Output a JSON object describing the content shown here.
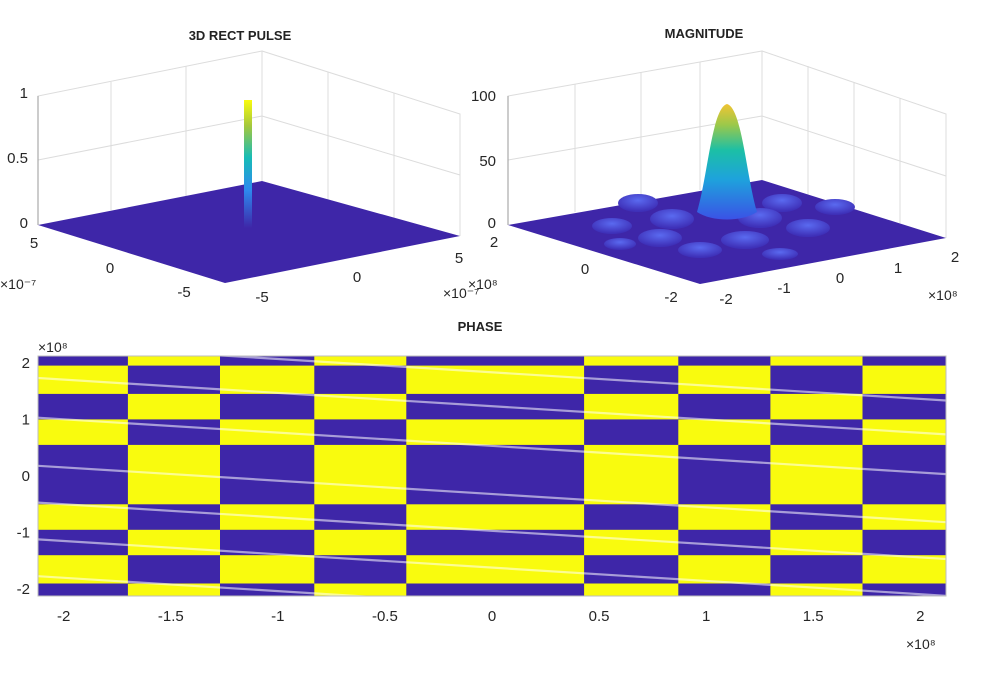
{
  "chart_data": [
    {
      "type": "surface",
      "title": "3D RECT PULSE",
      "x_ticks": [
        "5",
        "0",
        "-5"
      ],
      "y_ticks": [
        "-5",
        "0",
        "5"
      ],
      "z_ticks": [
        "0",
        "0.5",
        "1"
      ],
      "x_exponent": "×10⁻⁷",
      "y_exponent": "×10⁻⁷",
      "xlim": [
        -6e-07,
        6e-07
      ],
      "ylim": [
        -6e-07,
        6e-07
      ],
      "zlim": [
        0,
        1
      ],
      "peak": {
        "x": 0,
        "y": 0,
        "z": 1
      },
      "colormap": [
        "#3e26a8",
        "#2d8bef",
        "#17bcb6",
        "#a5c83c",
        "#f9fb0e"
      ],
      "grid": true
    },
    {
      "type": "surface",
      "title": "MAGNITUDE",
      "x_ticks": [
        "2",
        "0",
        "-2"
      ],
      "y_ticks": [
        "-2",
        "-1",
        "0",
        "1",
        "2"
      ],
      "z_ticks": [
        "0",
        "50",
        "100"
      ],
      "x_exponent": "×10⁸",
      "y_exponent": "×10⁸",
      "xlim": [
        -220000000.0,
        220000000.0
      ],
      "ylim": [
        -220000000.0,
        220000000.0
      ],
      "zlim": [
        0,
        100
      ],
      "peak": {
        "x": 0,
        "y": 0,
        "z": 92
      },
      "colormap": [
        "#3e26a8",
        "#2d8bef",
        "#17bcb6",
        "#a5c83c",
        "#f9fb0e"
      ],
      "grid": true
    },
    {
      "type": "heatmap",
      "title": "PHASE",
      "x_ticks": [
        -2,
        -1.5,
        -1,
        -0.5,
        0,
        0.5,
        1,
        1.5,
        2
      ],
      "y_ticks": [
        2,
        1,
        0,
        -1,
        -2
      ],
      "x_exponent": "×10⁸",
      "y_exponent": "×10⁸",
      "xlim": [
        -212000000.0,
        212000000.0
      ],
      "ylim": [
        -212000000.0,
        212000000.0
      ],
      "colors": {
        "low": "#3e26a8",
        "high": "#f9fb0e"
      },
      "column_boundaries": [
        -1.7,
        -1.27,
        -0.83,
        -0.4,
        0.43,
        0.87,
        1.3,
        1.73
      ],
      "row_boundaries": [
        1.95,
        1.45,
        1.0,
        0.55,
        -0.5,
        -0.95,
        -1.4,
        -1.9
      ]
    }
  ]
}
